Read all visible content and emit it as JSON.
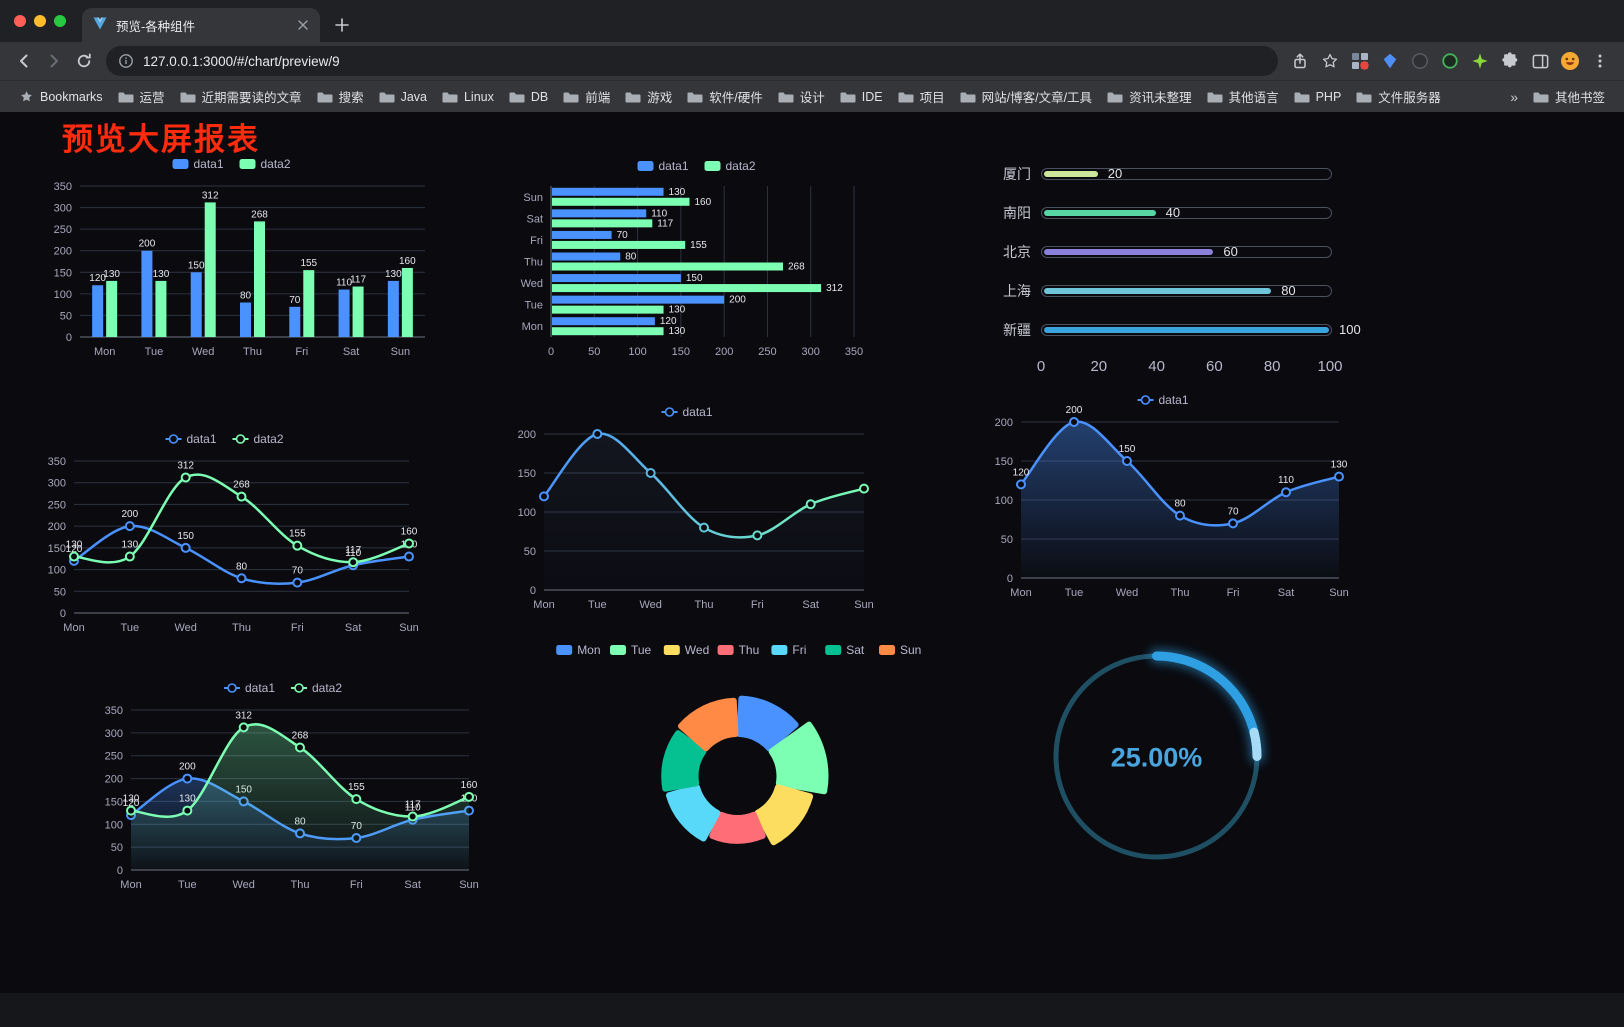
{
  "browser": {
    "tab": {
      "title": "预览-各种组件"
    },
    "url": "127.0.0.1:3000/#/chart/preview/9",
    "bookmarks_label": "Bookmarks",
    "bookmarks": [
      "运营",
      "近期需要读的文章",
      "搜索",
      "Java",
      "Linux",
      "DB",
      "前端",
      "游戏",
      "软件/硬件",
      "设计",
      "IDE",
      "项目",
      "网站/博客/文章/工具",
      "资讯未整理",
      "其他语言",
      "PHP",
      "文件服务器"
    ],
    "bookmarks_overflow": "»",
    "other_bookmarks": "其他书签",
    "icons": {
      "tab_favicon": "vue-logo",
      "address_info": "info-circle",
      "share": "share-up-arrow",
      "bookmark_star": "star-outline",
      "menu": "kebab-dots"
    }
  },
  "page": {
    "title": "预览大屏报表",
    "title_color": "#ff2b0f",
    "background": "#0a0a0f"
  },
  "chart_data": [
    {
      "type": "bar",
      "categories": [
        "Mon",
        "Tue",
        "Wed",
        "Thu",
        "Fri",
        "Sat",
        "Sun"
      ],
      "series": [
        {
          "name": "data1",
          "color": "#4992ff",
          "values": [
            120,
            200,
            150,
            80,
            70,
            110,
            130
          ]
        },
        {
          "name": "data2",
          "color": "#7cffb2",
          "values": [
            130,
            130,
            312,
            268,
            155,
            117,
            160
          ]
        }
      ],
      "ylim": [
        0,
        350
      ],
      "ytick": 50,
      "legend_position": "top",
      "show_labels": true
    },
    {
      "type": "hbar",
      "categories": [
        "Mon",
        "Tue",
        "Wed",
        "Thu",
        "Fri",
        "Sat",
        "Sun"
      ],
      "series": [
        {
          "name": "data1",
          "color": "#4992ff",
          "values": [
            120,
            200,
            150,
            80,
            70,
            110,
            130
          ]
        },
        {
          "name": "data2",
          "color": "#7cffb2",
          "values": [
            130,
            130,
            312,
            268,
            155,
            117,
            160
          ]
        }
      ],
      "xlim": [
        0,
        350
      ],
      "xtick": 50,
      "legend_position": "top",
      "show_labels": true
    },
    {
      "type": "progress",
      "items": [
        {
          "label": "厦门",
          "value": 20,
          "color": "#cde79a"
        },
        {
          "label": "南阳",
          "value": 40,
          "color": "#55d6a4"
        },
        {
          "label": "北京",
          "value": 60,
          "color": "#8a80dc"
        },
        {
          "label": "上海",
          "value": 80,
          "color": "#6ec4d9"
        },
        {
          "label": "新疆",
          "value": 100,
          "color": "#3aa4de"
        }
      ],
      "xlim": [
        0,
        100
      ],
      "xticks": [
        0,
        20,
        40,
        60,
        80,
        100
      ]
    },
    {
      "type": "line",
      "categories": [
        "Mon",
        "Tue",
        "Wed",
        "Thu",
        "Fri",
        "Sat",
        "Sun"
      ],
      "series": [
        {
          "name": "data1",
          "color": "#4992ff",
          "values": [
            120,
            200,
            150,
            80,
            70,
            110,
            130
          ]
        },
        {
          "name": "data2",
          "color": "#7cffb2",
          "values": [
            130,
            130,
            312,
            268,
            155,
            117,
            160
          ]
        }
      ],
      "ylim": [
        0,
        350
      ],
      "ytick": 50,
      "legend_position": "top",
      "show_labels": true
    },
    {
      "type": "line",
      "categories": [
        "Mon",
        "Tue",
        "Wed",
        "Thu",
        "Fri",
        "Sat",
        "Sun"
      ],
      "series": [
        {
          "name": "data1",
          "gradient": [
            "#4992ff",
            "#7cffb2"
          ],
          "values": [
            120,
            200,
            150,
            80,
            70,
            110,
            130
          ],
          "area": true,
          "area_color": "#6a83b5",
          "area_opacity": 0.1
        }
      ],
      "ylim": [
        0,
        200
      ],
      "ytick": 50,
      "legend_position": "top",
      "show_labels": false
    },
    {
      "type": "line",
      "categories": [
        "Mon",
        "Tue",
        "Wed",
        "Thu",
        "Fri",
        "Sat",
        "Sun"
      ],
      "series": [
        {
          "name": "data1",
          "color": "#4992ff",
          "values": [
            120,
            200,
            150,
            80,
            70,
            110,
            130
          ],
          "area": true,
          "area_opacity": 0.4
        }
      ],
      "ylim": [
        0,
        200
      ],
      "ytick": 50,
      "legend_position": "top",
      "show_labels": true
    },
    {
      "type": "line",
      "categories": [
        "Mon",
        "Tue",
        "Wed",
        "Thu",
        "Fri",
        "Sat",
        "Sun"
      ],
      "series": [
        {
          "name": "data1",
          "color": "#4992ff",
          "values": [
            120,
            200,
            150,
            80,
            70,
            110,
            130
          ],
          "area": true,
          "area_opacity": 0.3
        },
        {
          "name": "data2",
          "color": "#7cffb2",
          "values": [
            130,
            130,
            312,
            268,
            155,
            117,
            160
          ],
          "area": true,
          "area_opacity": 0.3
        }
      ],
      "ylim": [
        0,
        350
      ],
      "ytick": 50,
      "legend_position": "top",
      "show_labels": true
    },
    {
      "type": "rose",
      "values_estimated": true,
      "items": [
        {
          "name": "Mon",
          "value": 30,
          "color": "#4992ff"
        },
        {
          "name": "Tue",
          "value": 40,
          "color": "#7cffb2"
        },
        {
          "name": "Wed",
          "value": 28,
          "color": "#fddd60"
        },
        {
          "name": "Thu",
          "value": 18,
          "color": "#ff6e76"
        },
        {
          "name": "Fri",
          "value": 24,
          "color": "#58d9f9"
        },
        {
          "name": "Sat",
          "value": 26,
          "color": "#05c091"
        },
        {
          "name": "Sun",
          "value": 28,
          "color": "#ff8a45"
        }
      ],
      "legend_position": "top"
    },
    {
      "type": "gauge",
      "value": 25,
      "label": "25.00%",
      "color": "#2f9fe3",
      "tip_color": "#a6daf5",
      "track_color": "#1f4f63",
      "text_color": "#4aa4dd"
    }
  ]
}
